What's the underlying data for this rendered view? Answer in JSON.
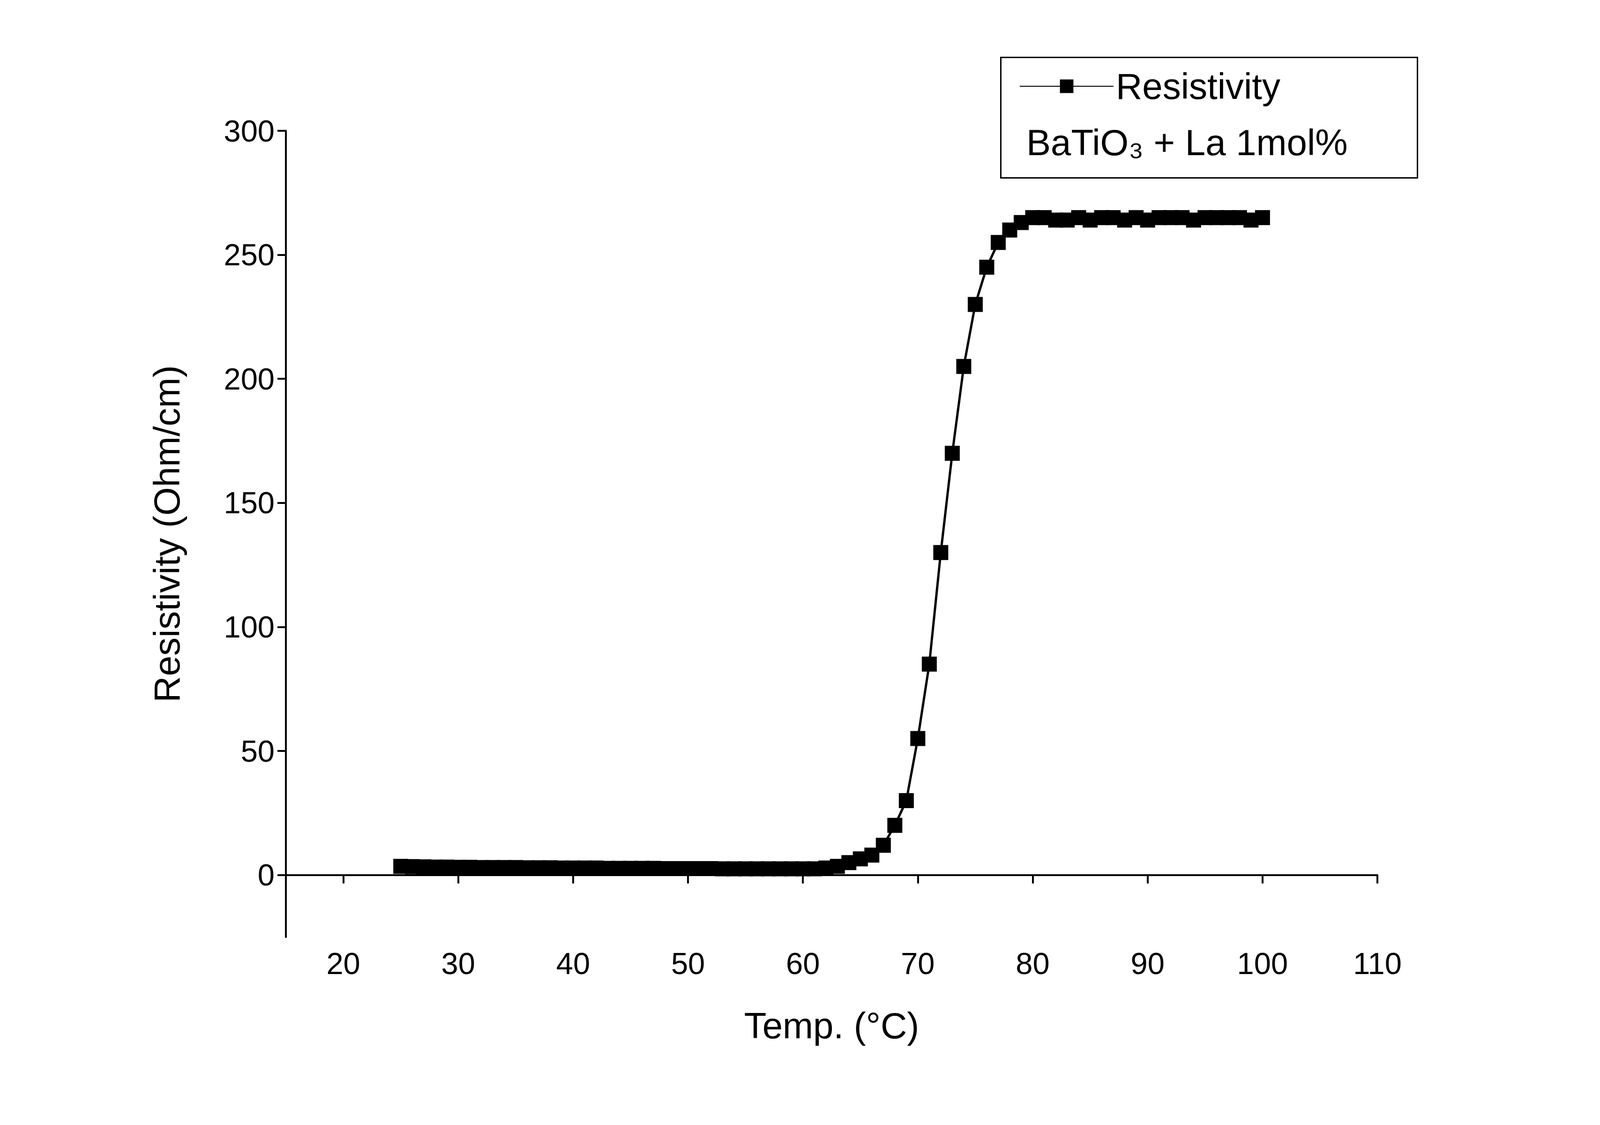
{
  "chart_data": {
    "type": "line",
    "xlabel": "Temp. (°C)",
    "ylabel": "Resistivity (Ohm/cm)",
    "annotation": "BaTiO₃ + La 1mol%",
    "legend": "upper right",
    "grid": false,
    "marker": "square",
    "xlim": [
      15,
      110
    ],
    "xticks": [
      20,
      30,
      40,
      50,
      60,
      70,
      80,
      90,
      100,
      110
    ],
    "ylim": [
      -25,
      300
    ],
    "yticks": [
      0,
      50,
      100,
      150,
      200,
      250,
      300
    ],
    "x": [
      25,
      26,
      27,
      28,
      29,
      30,
      31,
      32,
      33,
      34,
      35,
      36,
      37,
      38,
      39,
      40,
      41,
      42,
      43,
      44,
      45,
      46,
      47,
      48,
      49,
      50,
      51,
      52,
      53,
      54,
      55,
      56,
      57,
      58,
      59,
      60,
      61,
      62,
      63,
      64,
      65,
      66,
      67,
      68,
      69,
      70,
      71,
      72,
      73,
      74,
      75,
      76,
      77,
      78,
      79,
      80,
      81,
      82,
      83,
      84,
      85,
      86,
      87,
      88,
      89,
      90,
      91,
      92,
      93,
      94,
      95,
      96,
      97,
      98,
      99,
      100
    ],
    "series": [
      {
        "name": "Resistivity",
        "color": "#000000",
        "values": [
          3.5,
          3.4,
          3.3,
          3.2,
          3.2,
          3.1,
          3.1,
          3.0,
          3.0,
          3.0,
          3.0,
          2.9,
          2.9,
          2.9,
          2.8,
          2.8,
          2.8,
          2.8,
          2.7,
          2.7,
          2.7,
          2.7,
          2.7,
          2.6,
          2.6,
          2.6,
          2.6,
          2.6,
          2.5,
          2.5,
          2.5,
          2.5,
          2.5,
          2.5,
          2.5,
          2.5,
          2.5,
          2.8,
          3.5,
          5,
          6.5,
          8,
          12,
          20,
          30,
          55,
          85,
          130,
          170,
          205,
          230,
          245,
          255,
          260,
          263,
          265,
          265,
          264,
          264,
          265,
          264,
          265,
          265,
          264,
          265,
          264,
          265,
          265,
          265,
          264,
          265,
          265,
          265,
          265,
          264,
          265
        ]
      }
    ]
  }
}
